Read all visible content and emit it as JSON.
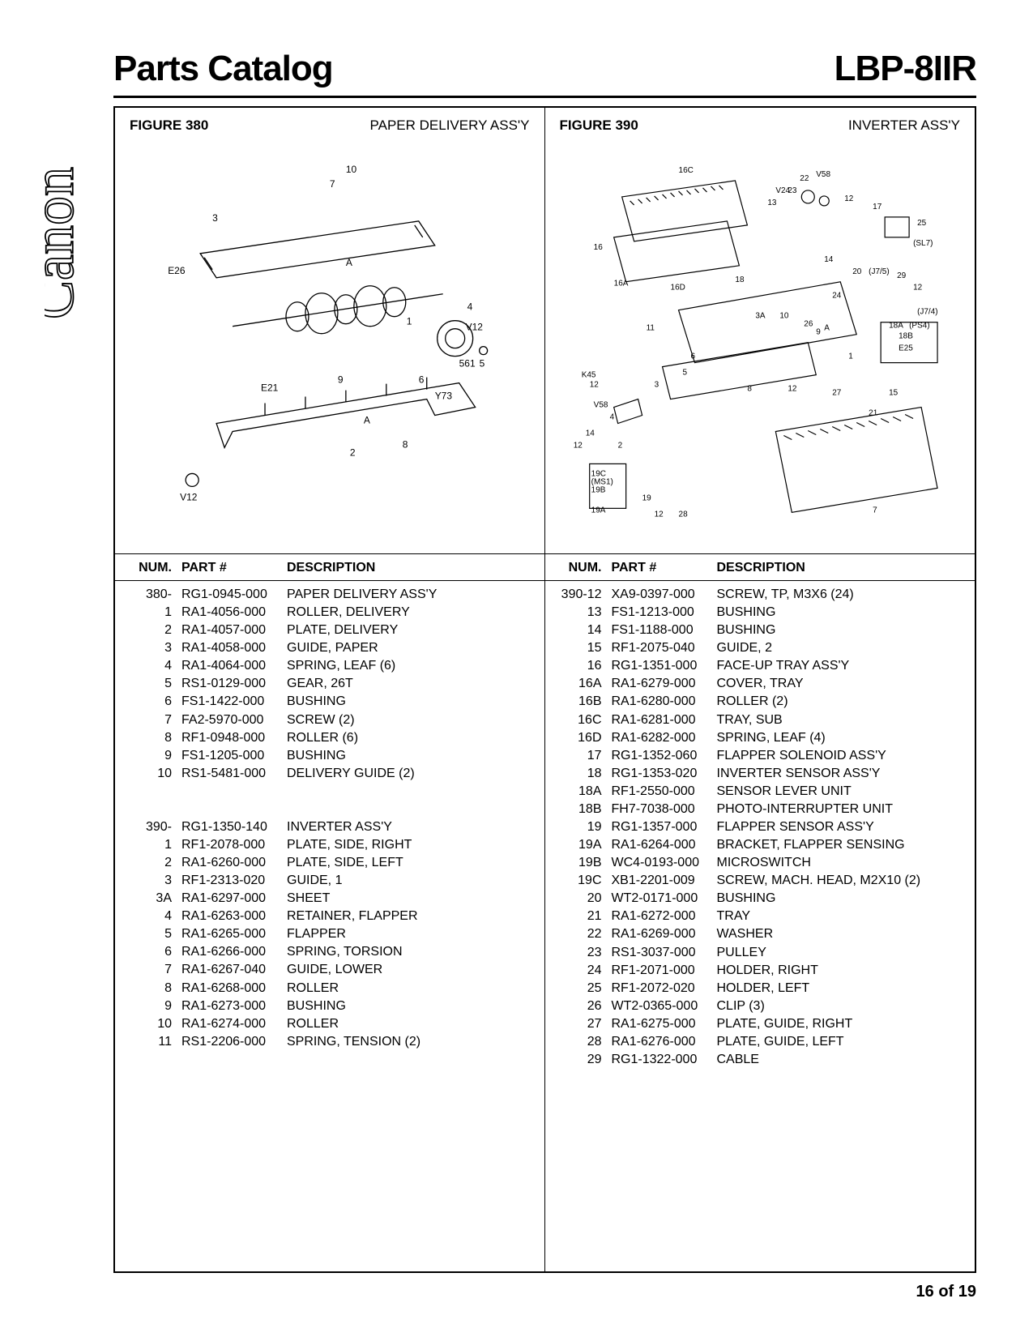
{
  "header": {
    "title_left": "Parts Catalog",
    "title_right": "LBP-8IIR"
  },
  "brand": "Canon",
  "left_figure": {
    "label": "FIGURE 380",
    "title": "PAPER DELIVERY ASS'Y",
    "callouts": [
      "10",
      "7",
      "3",
      "E26",
      "A",
      "1",
      "4",
      "5",
      "E21",
      "9",
      "V12",
      "6",
      "Y73",
      "561",
      "2",
      "8",
      "V12"
    ]
  },
  "right_figure": {
    "label": "FIGURE 390",
    "title": "INVERTER ASS'Y",
    "callouts": [
      "16C",
      "22",
      "V58",
      "V24",
      "23",
      "13",
      "12",
      "17",
      "25",
      "(SL7)",
      "16",
      "16A",
      "16D",
      "18",
      "14",
      "20",
      "(J7/5)",
      "29",
      "12",
      "24",
      "(J7/4)",
      "11",
      "3A",
      "10",
      "26",
      "9",
      "A",
      "18A",
      "(PS4)",
      "18B",
      "E25",
      "1",
      "6",
      "5",
      "K45",
      "12",
      "3",
      "8",
      "12",
      "15",
      "27",
      "V58",
      "4",
      "21",
      "14",
      "12",
      "2",
      "19C",
      "(MS1)",
      "19B",
      "19A",
      "19",
      "12",
      "28",
      "7"
    ]
  },
  "table_headers": {
    "num": "NUM.",
    "part": "PART #",
    "desc": "DESCRIPTION"
  },
  "left_rows": [
    {
      "num": "380-",
      "part": "RG1-0945-000",
      "desc": "PAPER DELIVERY ASS'Y"
    },
    {
      "num": "1",
      "part": "RA1-4056-000",
      "desc": "ROLLER, DELIVERY"
    },
    {
      "num": "2",
      "part": "RA1-4057-000",
      "desc": "PLATE, DELIVERY"
    },
    {
      "num": "3",
      "part": "RA1-4058-000",
      "desc": "GUIDE, PAPER"
    },
    {
      "num": "4",
      "part": "RA1-4064-000",
      "desc": "SPRING, LEAF (6)"
    },
    {
      "num": "5",
      "part": "RS1-0129-000",
      "desc": "GEAR, 26T"
    },
    {
      "num": "6",
      "part": "FS1-1422-000",
      "desc": "BUSHING"
    },
    {
      "num": "7",
      "part": "FA2-5970-000",
      "desc": "SCREW (2)"
    },
    {
      "num": "8",
      "part": "RF1-0948-000",
      "desc": "ROLLER (6)"
    },
    {
      "num": "9",
      "part": "FS1-1205-000",
      "desc": "BUSHING"
    },
    {
      "num": "10",
      "part": "RS1-5481-000",
      "desc": "DELIVERY GUIDE (2)"
    },
    {
      "spacer": true
    },
    {
      "spacer": true
    },
    {
      "num": "390-",
      "part": "RG1-1350-140",
      "desc": "INVERTER ASS'Y"
    },
    {
      "num": "1",
      "part": "RF1-2078-000",
      "desc": "PLATE, SIDE, RIGHT"
    },
    {
      "num": "2",
      "part": "RA1-6260-000",
      "desc": "PLATE, SIDE, LEFT"
    },
    {
      "num": "3",
      "part": "RF1-2313-020",
      "desc": "GUIDE, 1"
    },
    {
      "num": "3A",
      "part": "RA1-6297-000",
      "desc": "SHEET"
    },
    {
      "num": "4",
      "part": "RA1-6263-000",
      "desc": "RETAINER, FLAPPER"
    },
    {
      "num": "5",
      "part": "RA1-6265-000",
      "desc": "FLAPPER"
    },
    {
      "num": "6",
      "part": "RA1-6266-000",
      "desc": "SPRING, TORSION"
    },
    {
      "num": "7",
      "part": "RA1-6267-040",
      "desc": "GUIDE, LOWER"
    },
    {
      "num": "8",
      "part": "RA1-6268-000",
      "desc": "ROLLER"
    },
    {
      "num": "9",
      "part": "RA1-6273-000",
      "desc": "BUSHING"
    },
    {
      "num": "10",
      "part": "RA1-6274-000",
      "desc": "ROLLER"
    },
    {
      "num": "11",
      "part": "RS1-2206-000",
      "desc": "SPRING, TENSION (2)"
    }
  ],
  "right_rows": [
    {
      "num": "390-12",
      "part": "XA9-0397-000",
      "desc": "SCREW, TP, M3X6 (24)"
    },
    {
      "num": "13",
      "part": "FS1-1213-000",
      "desc": "BUSHING"
    },
    {
      "num": "14",
      "part": "FS1-1188-000",
      "desc": "BUSHING"
    },
    {
      "num": "15",
      "part": "RF1-2075-040",
      "desc": "GUIDE, 2"
    },
    {
      "num": "16",
      "part": "RG1-1351-000",
      "desc": "FACE-UP TRAY ASS'Y"
    },
    {
      "num": "16A",
      "part": "RA1-6279-000",
      "desc": "COVER, TRAY"
    },
    {
      "num": "16B",
      "part": "RA1-6280-000",
      "desc": "ROLLER (2)"
    },
    {
      "num": "16C",
      "part": "RA1-6281-000",
      "desc": "TRAY, SUB"
    },
    {
      "num": "16D",
      "part": "RA1-6282-000",
      "desc": "SPRING, LEAF (4)"
    },
    {
      "num": "17",
      "part": "RG1-1352-060",
      "desc": "FLAPPER SOLENOID ASS'Y"
    },
    {
      "num": "18",
      "part": "RG1-1353-020",
      "desc": "INVERTER SENSOR ASS'Y"
    },
    {
      "num": "18A",
      "part": "RF1-2550-000",
      "desc": "SENSOR LEVER UNIT"
    },
    {
      "num": "18B",
      "part": "FH7-7038-000",
      "desc": "PHOTO-INTERRUPTER UNIT"
    },
    {
      "num": "19",
      "part": "RG1-1357-000",
      "desc": "FLAPPER SENSOR ASS'Y"
    },
    {
      "num": "19A",
      "part": "RA1-6264-000",
      "desc": "BRACKET, FLAPPER SENSING"
    },
    {
      "num": "19B",
      "part": "WC4-0193-000",
      "desc": "MICROSWITCH"
    },
    {
      "num": "19C",
      "part": "XB1-2201-009",
      "desc": "SCREW, MACH. HEAD, M2X10 (2)"
    },
    {
      "num": "20",
      "part": "WT2-0171-000",
      "desc": "BUSHING"
    },
    {
      "num": "21",
      "part": "RA1-6272-000",
      "desc": "TRAY"
    },
    {
      "num": "22",
      "part": "RA1-6269-000",
      "desc": "WASHER"
    },
    {
      "num": "23",
      "part": "RS1-3037-000",
      "desc": "PULLEY"
    },
    {
      "num": "24",
      "part": "RF1-2071-000",
      "desc": "HOLDER, RIGHT"
    },
    {
      "num": "25",
      "part": "RF1-2072-020",
      "desc": "HOLDER, LEFT"
    },
    {
      "num": "26",
      "part": "WT2-0365-000",
      "desc": "CLIP (3)"
    },
    {
      "num": "27",
      "part": "RA1-6275-000",
      "desc": "PLATE, GUIDE, RIGHT"
    },
    {
      "num": "28",
      "part": "RA1-6276-000",
      "desc": "PLATE, GUIDE, LEFT"
    },
    {
      "num": "29",
      "part": "RG1-1322-000",
      "desc": "CABLE"
    }
  ],
  "footer": "16 of 19"
}
